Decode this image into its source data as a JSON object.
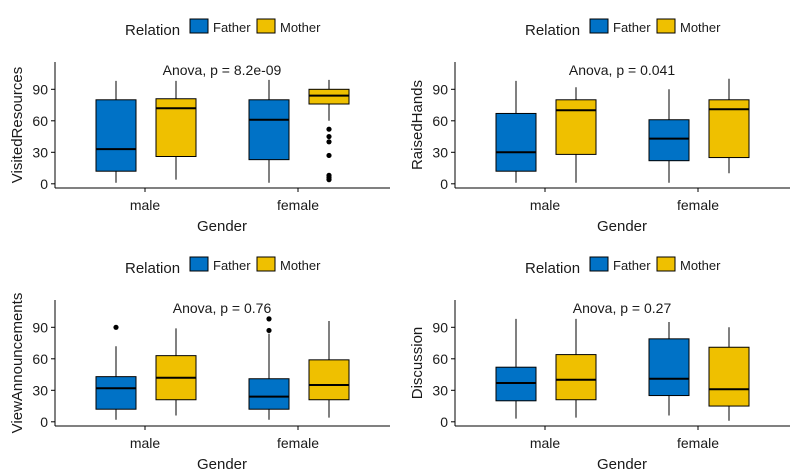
{
  "legend": {
    "title": "Relation",
    "entries": [
      {
        "name": "Father",
        "color": "#0072C6"
      },
      {
        "name": "Mother",
        "color": "#EFC000"
      }
    ]
  },
  "chart_data": [
    {
      "type": "box",
      "ylabel": "VisitedResources",
      "xlabel": "Gender",
      "annotation": "Anova, p = 8.2e-09",
      "categories": [
        "male",
        "female"
      ],
      "yticks": [
        0,
        30,
        60,
        90
      ],
      "ylim": [
        -4,
        116
      ],
      "series": [
        {
          "name": "Father",
          "boxes": [
            {
              "category": "male",
              "lower_whisker": 1,
              "q1": 12,
              "median": 33,
              "q3": 80,
              "upper_whisker": 98,
              "outliers": []
            },
            {
              "category": "female",
              "lower_whisker": 1,
              "q1": 23,
              "median": 61,
              "q3": 80,
              "upper_whisker": 99,
              "outliers": []
            }
          ]
        },
        {
          "name": "Mother",
          "boxes": [
            {
              "category": "male",
              "lower_whisker": 4,
              "q1": 26,
              "median": 72,
              "q3": 81,
              "upper_whisker": 98,
              "outliers": []
            },
            {
              "category": "female",
              "lower_whisker": 60,
              "q1": 76,
              "median": 84,
              "q3": 90,
              "upper_whisker": 99,
              "outliers": [
                52,
                45,
                40,
                27,
                8,
                6,
                4
              ]
            }
          ]
        }
      ]
    },
    {
      "type": "box",
      "ylabel": "RaisedHands",
      "xlabel": "Gender",
      "annotation": "Anova, p = 0.041",
      "categories": [
        "male",
        "female"
      ],
      "yticks": [
        0,
        30,
        60,
        90
      ],
      "ylim": [
        -4,
        116
      ],
      "series": [
        {
          "name": "Father",
          "boxes": [
            {
              "category": "male",
              "lower_whisker": 1,
              "q1": 12,
              "median": 30,
              "q3": 67,
              "upper_whisker": 98,
              "outliers": []
            },
            {
              "category": "female",
              "lower_whisker": 1,
              "q1": 22,
              "median": 43,
              "q3": 61,
              "upper_whisker": 90,
              "outliers": []
            }
          ]
        },
        {
          "name": "Mother",
          "boxes": [
            {
              "category": "male",
              "lower_whisker": 1,
              "q1": 28,
              "median": 70,
              "q3": 80,
              "upper_whisker": 92,
              "outliers": []
            },
            {
              "category": "female",
              "lower_whisker": 10,
              "q1": 25,
              "median": 71,
              "q3": 80,
              "upper_whisker": 100,
              "outliers": []
            }
          ]
        }
      ]
    },
    {
      "type": "box",
      "ylabel": "ViewAnnouncements",
      "xlabel": "Gender",
      "annotation": "Anova, p = 0.76",
      "categories": [
        "male",
        "female"
      ],
      "yticks": [
        0,
        30,
        60,
        90
      ],
      "ylim": [
        -4,
        116
      ],
      "series": [
        {
          "name": "Father",
          "boxes": [
            {
              "category": "male",
              "lower_whisker": 2,
              "q1": 12,
              "median": 32,
              "q3": 43,
              "upper_whisker": 72,
              "outliers": [
                90
              ]
            },
            {
              "category": "female",
              "lower_whisker": 2,
              "q1": 12,
              "median": 24,
              "q3": 41,
              "upper_whisker": 84,
              "outliers": [
                98,
                87
              ]
            }
          ]
        },
        {
          "name": "Mother",
          "boxes": [
            {
              "category": "male",
              "lower_whisker": 6,
              "q1": 21,
              "median": 42,
              "q3": 63,
              "upper_whisker": 89,
              "outliers": []
            },
            {
              "category": "female",
              "lower_whisker": 4,
              "q1": 21,
              "median": 35,
              "q3": 59,
              "upper_whisker": 96,
              "outliers": []
            }
          ]
        }
      ]
    },
    {
      "type": "box",
      "ylabel": "Discussion",
      "xlabel": "Gender",
      "annotation": "Anova, p = 0.27",
      "categories": [
        "male",
        "female"
      ],
      "yticks": [
        0,
        30,
        60,
        90
      ],
      "ylim": [
        -4,
        116
      ],
      "series": [
        {
          "name": "Father",
          "boxes": [
            {
              "category": "male",
              "lower_whisker": 3,
              "q1": 20,
              "median": 37,
              "q3": 52,
              "upper_whisker": 98,
              "outliers": []
            },
            {
              "category": "female",
              "lower_whisker": 6,
              "q1": 25,
              "median": 41,
              "q3": 79,
              "upper_whisker": 95,
              "outliers": []
            }
          ]
        },
        {
          "name": "Mother",
          "boxes": [
            {
              "category": "male",
              "lower_whisker": 4,
              "q1": 21,
              "median": 40,
              "q3": 64,
              "upper_whisker": 98,
              "outliers": []
            },
            {
              "category": "female",
              "lower_whisker": 1,
              "q1": 15,
              "median": 31,
              "q3": 71,
              "upper_whisker": 90,
              "outliers": []
            }
          ]
        }
      ]
    }
  ]
}
